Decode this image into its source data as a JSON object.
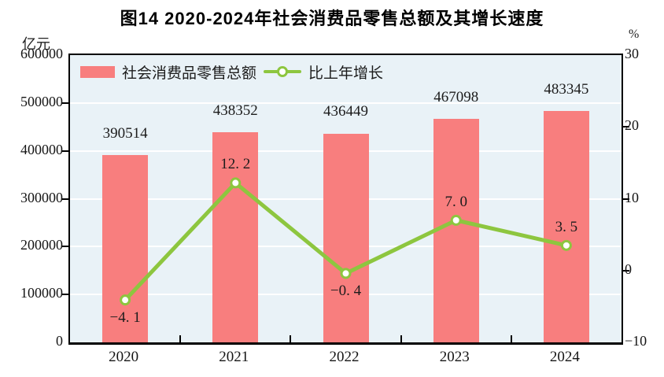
{
  "title": "图14  2020-2024年社会消费品零售总额及其增长速度",
  "left_axis": {
    "unit": "亿元",
    "ticks": [
      "600000",
      "500000",
      "400000",
      "300000",
      "200000",
      "100000",
      "0"
    ]
  },
  "right_axis": {
    "unit": "%",
    "ticks": [
      "30",
      "20",
      "10",
      "0",
      "−10"
    ]
  },
  "legend": [
    {
      "label": "社会消费品零售总额",
      "type": "bar",
      "color": "#f87e7e"
    },
    {
      "label": "比上年增长",
      "type": "line",
      "color": "#8dc63f"
    }
  ],
  "colors": {
    "bar": "#f87e7e",
    "line": "#8dc63f",
    "marker_fill": "#ffffff",
    "plot_background": "#e9f2f7",
    "gridline": "#ffffff",
    "axis": "#000000"
  },
  "chart_data": {
    "type": "bar",
    "categories": [
      "2020",
      "2021",
      "2022",
      "2023",
      "2024"
    ],
    "series": [
      {
        "name": "社会消费品零售总额",
        "type": "bar",
        "axis": "left",
        "values": [
          390514,
          438352,
          436449,
          467098,
          483345
        ],
        "labels": [
          "390514",
          "438352",
          "436449",
          "467098",
          "483345"
        ],
        "color": "#f87e7e"
      },
      {
        "name": "比上年增长",
        "type": "line",
        "axis": "right",
        "values": [
          -4.1,
          12.2,
          -0.4,
          7.0,
          3.5
        ],
        "labels": [
          "−4. 1",
          "12. 2",
          "−0. 4",
          "7. 0",
          "3. 5"
        ],
        "color": "#8dc63f"
      }
    ],
    "title": "图14  2020-2024年社会消费品零售总额及其增长速度",
    "xlabel": "",
    "ylabel_left": "亿元",
    "ylabel_right": "%",
    "left_ylim": [
      0,
      600000
    ],
    "left_tick_step": 100000,
    "right_ylim": [
      -10,
      30
    ],
    "right_tick_step": 10,
    "grid": true,
    "legend_position": "top-left-inside"
  }
}
